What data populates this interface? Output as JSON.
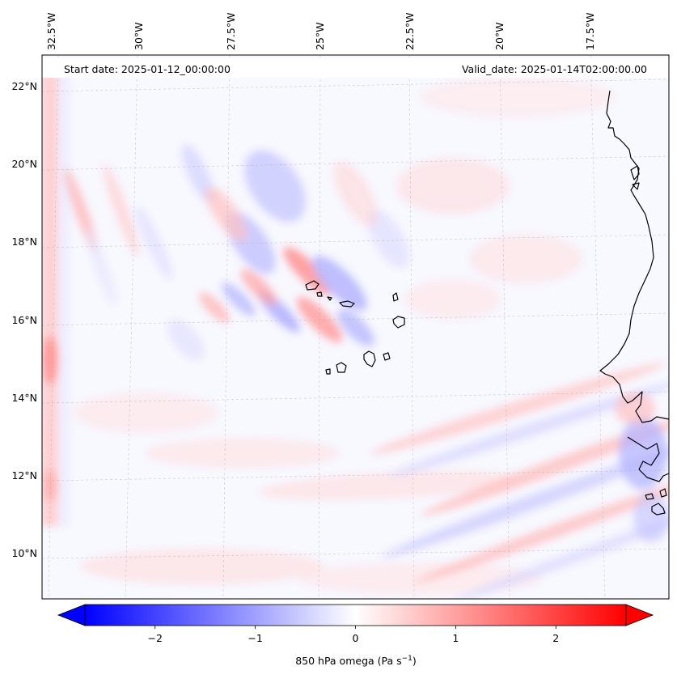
{
  "map": {
    "start_label": "Start date: 2025-01-12_00:00:00",
    "valid_label": "Valid_date: 2025-01-14T02:00:00.00",
    "lon_ticks": [
      "32.5°W",
      "30°W",
      "27.5°W",
      "25°W",
      "22.5°W",
      "20°W",
      "17.5°W"
    ],
    "lat_ticks": [
      "22°N",
      "20°N",
      "18°N",
      "16°N",
      "14°N",
      "12°N",
      "10°N"
    ],
    "features": [
      "Cabo Verde islands",
      "West African coastline"
    ],
    "field_colors": {
      "negative": "#0000ff",
      "zero": "#ffffff",
      "positive": "#ff0000"
    }
  },
  "colorbar": {
    "range": [
      -2.7,
      2.7
    ],
    "extend": "both",
    "tick_values": [
      -2,
      -1,
      0,
      1,
      2
    ],
    "tick_labels": [
      "−2",
      "−1",
      "0",
      "1",
      "2"
    ],
    "label_main": "850 hPa omega (Pa s",
    "label_sup": "−1",
    "label_end": ")",
    "colormap": "bwr"
  }
}
